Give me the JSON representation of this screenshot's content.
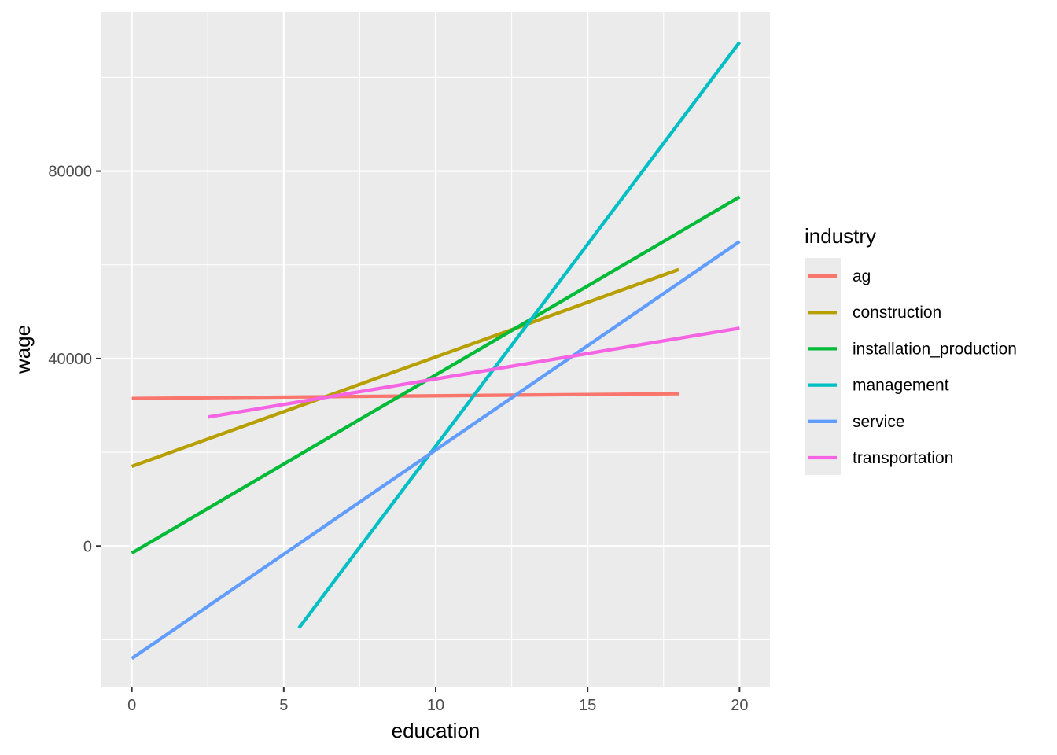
{
  "chart_data": {
    "type": "line",
    "title": "",
    "xlabel": "education",
    "ylabel": "wage",
    "xlim": [
      -1,
      21
    ],
    "ylim": [
      -30000,
      114000
    ],
    "x_ticks": [
      0,
      5,
      10,
      15,
      20
    ],
    "x_tick_labels": [
      "0",
      "5",
      "10",
      "15",
      "20"
    ],
    "x_minor": [
      2.5,
      7.5,
      12.5,
      17.5
    ],
    "y_ticks": [
      0,
      40000,
      80000
    ],
    "y_tick_labels": [
      "0",
      "40000",
      "80000"
    ],
    "y_minor": [
      -20000,
      20000,
      60000,
      100000
    ],
    "grid": true,
    "legend": {
      "title": "industry",
      "position": "right"
    },
    "series": [
      {
        "name": "ag",
        "color": "#F8766D",
        "x": [
          0,
          18
        ],
        "y": [
          31500,
          32500
        ]
      },
      {
        "name": "construction",
        "color": "#B79F00",
        "x": [
          0,
          18
        ],
        "y": [
          17000,
          59000
        ]
      },
      {
        "name": "installation_production",
        "color": "#00BA38",
        "x": [
          0,
          20
        ],
        "y": [
          -1500,
          74500
        ]
      },
      {
        "name": "management",
        "color": "#00BFC4",
        "x": [
          5.5,
          20
        ],
        "y": [
          -17500,
          107500
        ]
      },
      {
        "name": "service",
        "color": "#619CFF",
        "x": [
          0,
          20
        ],
        "y": [
          -24000,
          65000
        ]
      },
      {
        "name": "transportation",
        "color": "#F564E3",
        "x": [
          2.5,
          20
        ],
        "y": [
          27500,
          46500
        ]
      }
    ]
  }
}
